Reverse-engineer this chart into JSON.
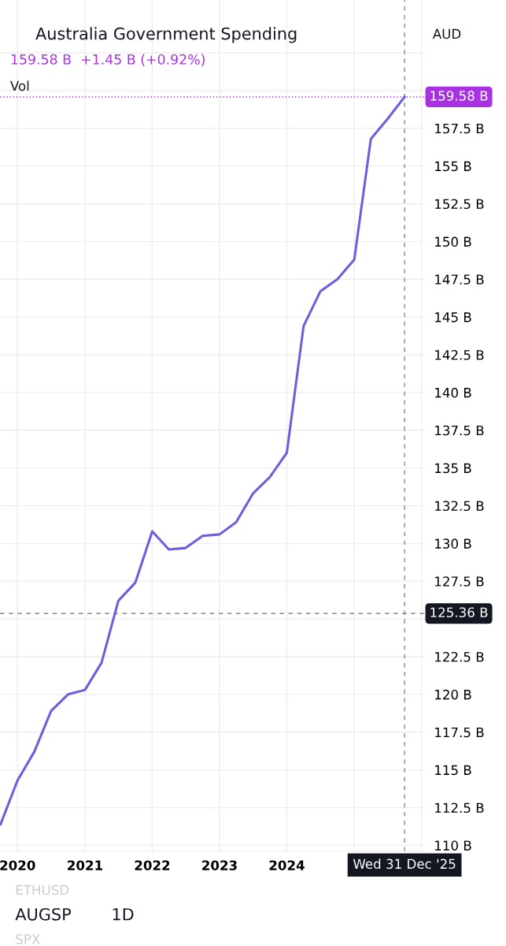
{
  "chart_data": {
    "type": "line",
    "title": "Australia Government Spending",
    "subtitle": "159.58 B  +1.45 B (+0.92%)",
    "x": [
      "2019-10-01",
      "2020-01-01",
      "2020-04-01",
      "2020-07-01",
      "2020-10-01",
      "2021-01-01",
      "2021-04-01",
      "2021-07-01",
      "2021-10-01",
      "2022-01-01",
      "2022-04-01",
      "2022-07-01",
      "2022-10-01",
      "2023-01-01",
      "2023-04-01",
      "2023-07-01",
      "2023-10-01",
      "2024-01-01",
      "2024-04-01",
      "2024-07-01",
      "2024-10-01",
      "2025-01-01",
      "2025-04-01",
      "2025-07-01",
      "2025-10-01"
    ],
    "series": [
      {
        "color": "#6a5fe0",
        "values": [
          111.4,
          114.3,
          116.2,
          118.9,
          120.0,
          120.3,
          122.1,
          126.2,
          127.4,
          130.8,
          129.6,
          129.7,
          130.5,
          130.6,
          131.4,
          133.3,
          134.4,
          136.0,
          144.4,
          146.7,
          147.5,
          148.8,
          156.8,
          158.13,
          159.58
        ]
      }
    ],
    "xlim": [
      "2019-09-28",
      "2026-01-20"
    ],
    "xticks": [
      {
        "value": "2020-01-01",
        "label": "2020"
      },
      {
        "value": "2021-01-01",
        "label": "2021"
      },
      {
        "value": "2022-01-01",
        "label": "2022"
      },
      {
        "value": "2023-01-01",
        "label": "2023"
      },
      {
        "value": "2024-01-01",
        "label": "2024"
      },
      {
        "value": "2025-01-01",
        "label": null
      },
      {
        "value": "2026-01-01",
        "label": null
      }
    ],
    "ylim": [
      109.6,
      166.0
    ],
    "yticks": [
      {
        "value": 110,
        "label": "110 B"
      },
      {
        "value": 112.5,
        "label": "112.5 B"
      },
      {
        "value": 115,
        "label": "115 B"
      },
      {
        "value": 117.5,
        "label": "117.5 B"
      },
      {
        "value": 120,
        "label": "120 B"
      },
      {
        "value": 122.5,
        "label": "122.5 B"
      },
      {
        "value": 125,
        "label": null
      },
      {
        "value": 127.5,
        "label": "127.5 B"
      },
      {
        "value": 130,
        "label": "130 B"
      },
      {
        "value": 132.5,
        "label": "132.5 B"
      },
      {
        "value": 135,
        "label": "135 B"
      },
      {
        "value": 137.5,
        "label": "137.5 B"
      },
      {
        "value": 140,
        "label": "140 B"
      },
      {
        "value": 142.5,
        "label": "142.5 B"
      },
      {
        "value": 145,
        "label": "145 B"
      },
      {
        "value": 147.5,
        "label": "147.5 B"
      },
      {
        "value": 150,
        "label": "150 B"
      },
      {
        "value": 152.5,
        "label": "152.5 B"
      },
      {
        "value": 155,
        "label": "155 B"
      },
      {
        "value": 157.5,
        "label": "157.5 B"
      },
      {
        "value": 160,
        "label": null
      },
      {
        "value": 162.5,
        "label": null
      }
    ],
    "ref_lines": [
      {
        "axis": "y",
        "value": 159.58,
        "label": "159.58 B",
        "color": "#a832e0",
        "line_style": "dotted"
      },
      {
        "axis": "y",
        "value": 125.36,
        "label": "125.36 B",
        "color": "#888888",
        "line_style": "dashed"
      },
      {
        "axis": "x",
        "value": "2025-10-01",
        "label": "Wed 31 Dec '25",
        "color": "#888888",
        "line_style": "dashed"
      }
    ],
    "annotations": [
      "Vol",
      "AUD",
      "AUGSP",
      "1D",
      "ETHUSD",
      "SPX"
    ],
    "grid": true,
    "line_style": "solid"
  }
}
